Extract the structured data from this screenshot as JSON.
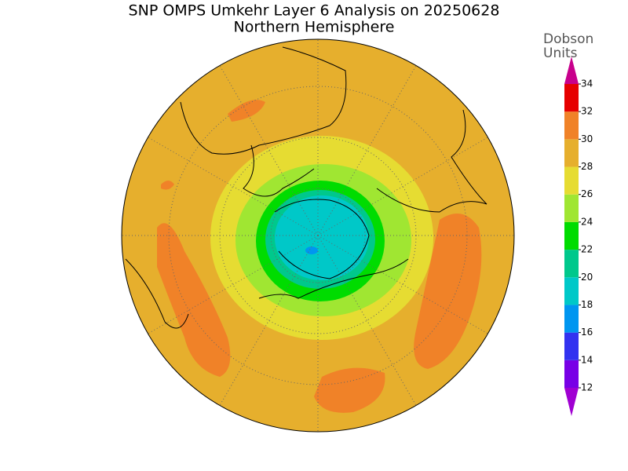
{
  "header": {
    "title": "SNP OMPS Umkehr Layer 6 Analysis on 20250628",
    "subtitle": "Northern Hemisphere"
  },
  "colorbar": {
    "label_lines": [
      "Dobson",
      "Units"
    ],
    "ticks": [
      12,
      14,
      16,
      18,
      20,
      22,
      24,
      26,
      28,
      30,
      32,
      34
    ],
    "colors": [
      "#a000d2",
      "#7800e6",
      "#3232f0",
      "#0096f0",
      "#00c8c8",
      "#00c88c",
      "#00dc00",
      "#a0e632",
      "#e6dc32",
      "#e6af2d",
      "#f08228",
      "#e60000",
      "#c8008c"
    ]
  }
}
